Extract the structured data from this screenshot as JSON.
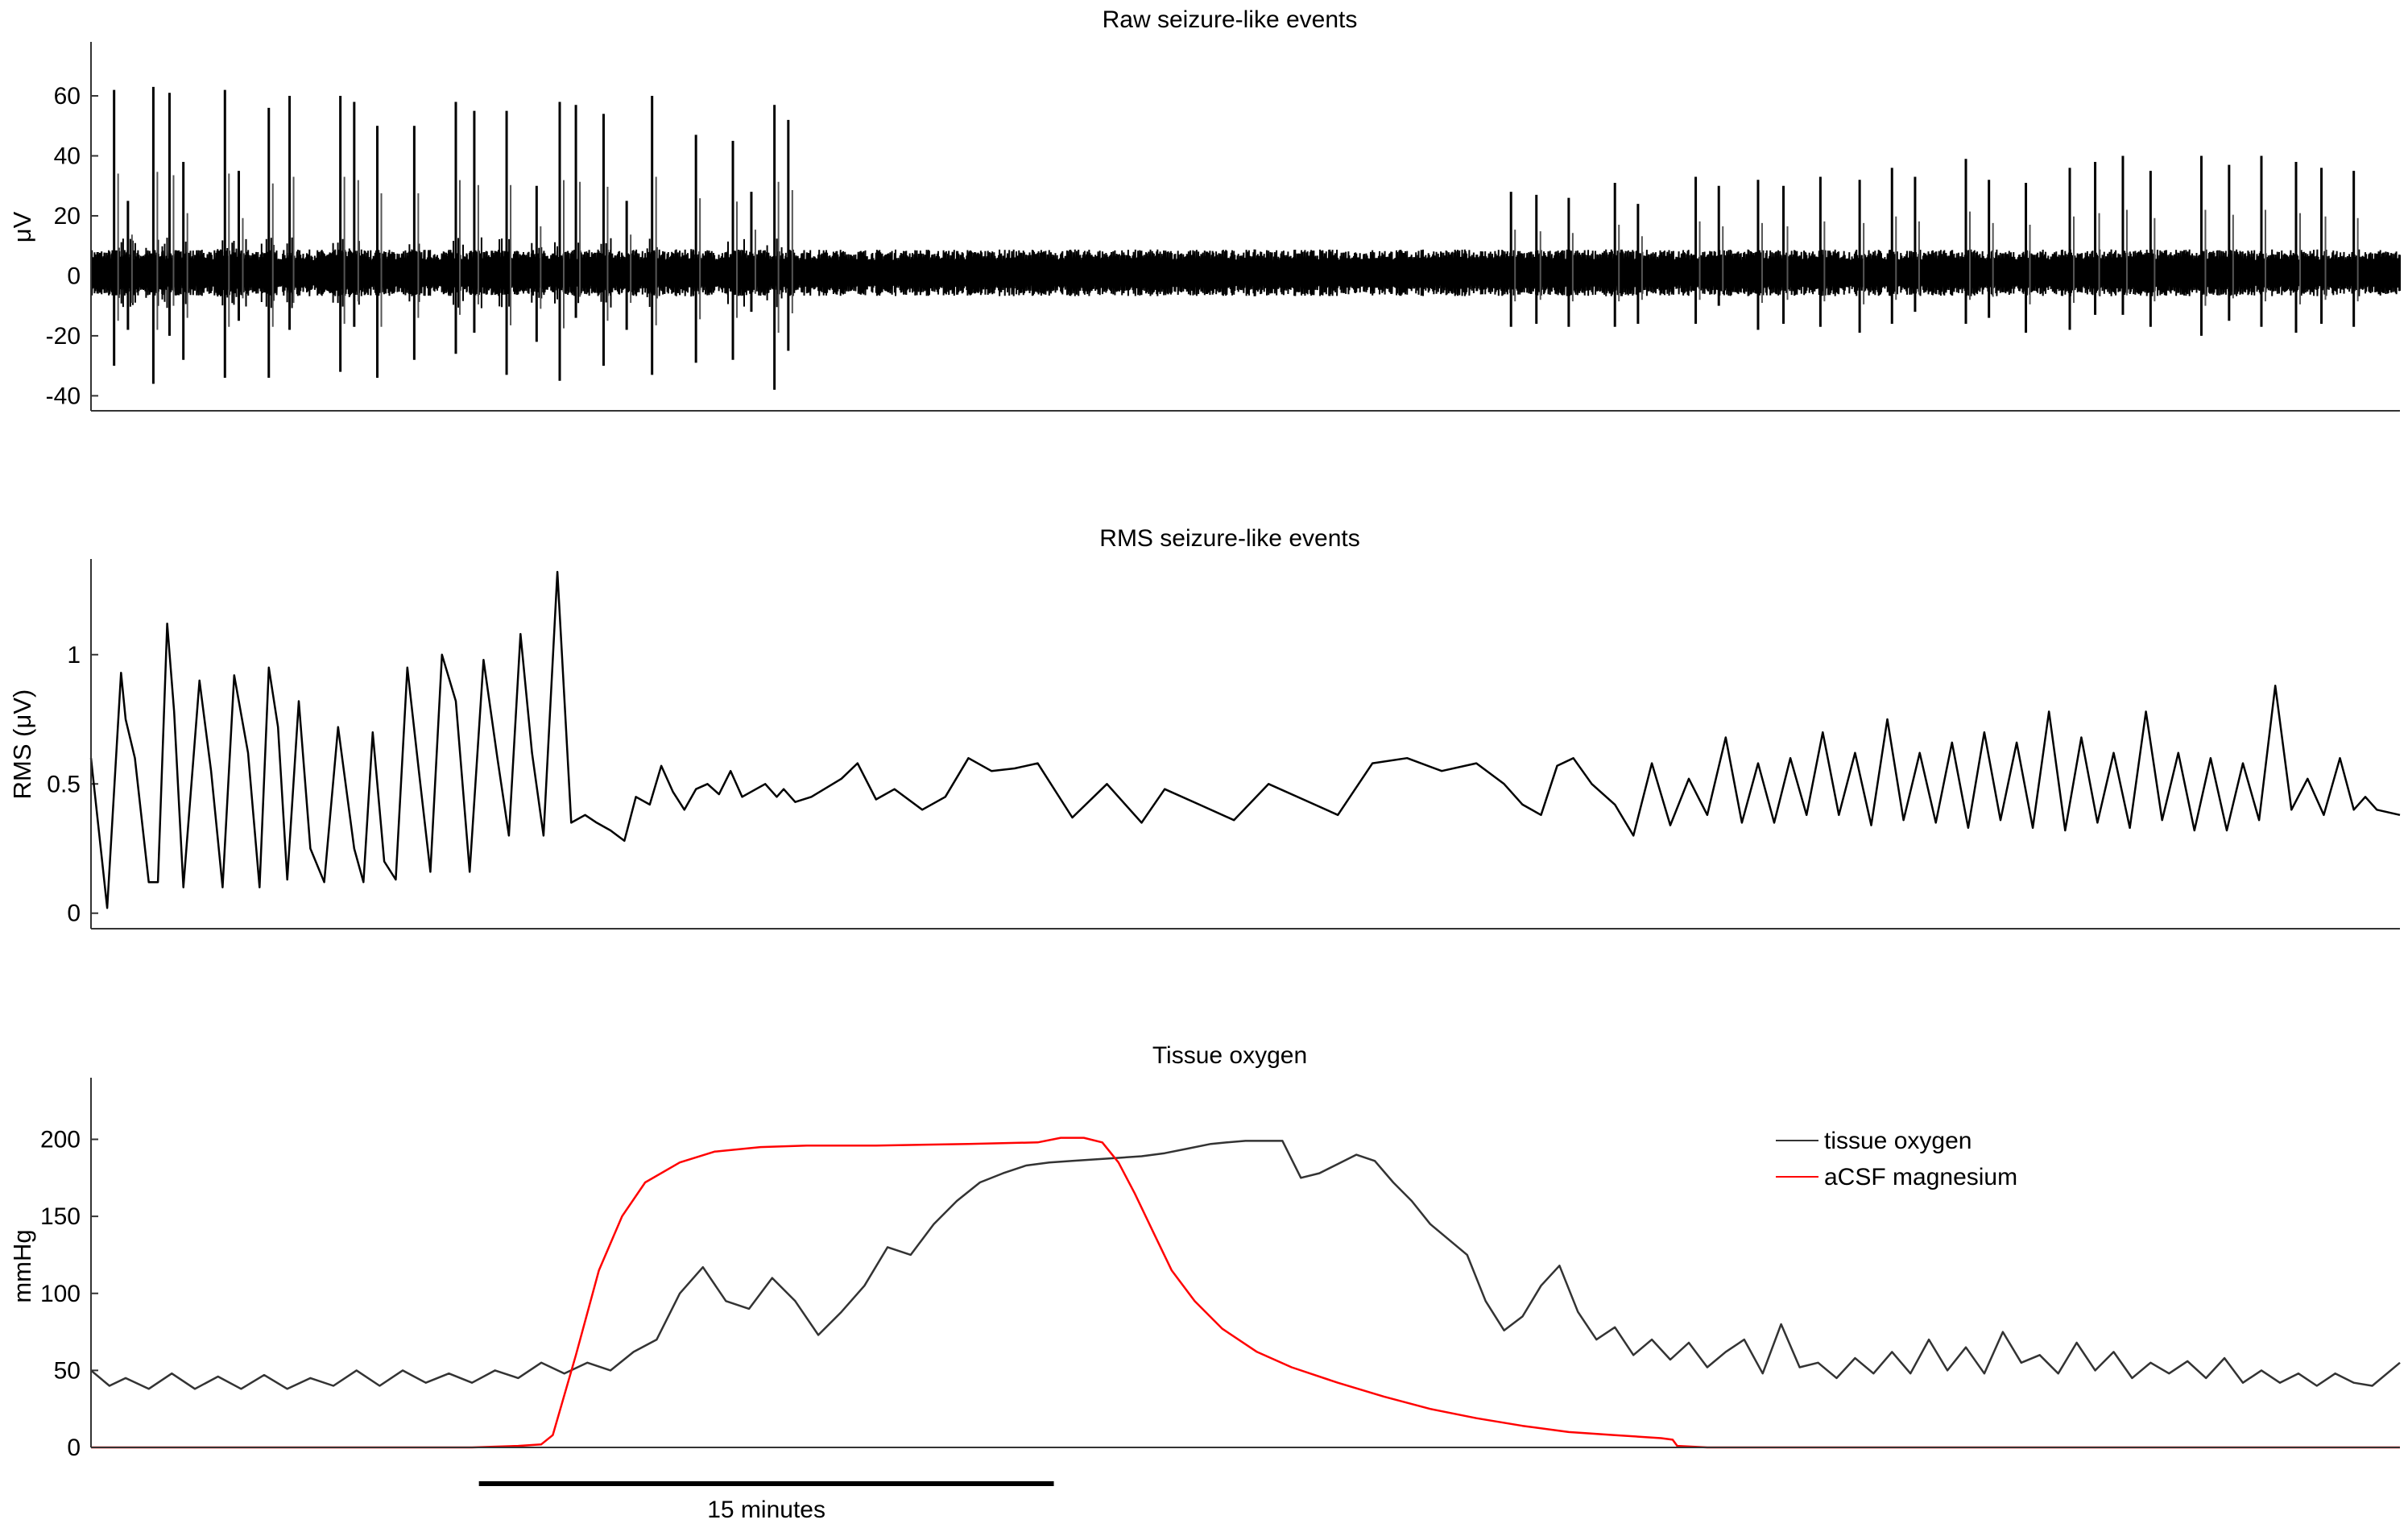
{
  "chart_data": [
    {
      "type": "line",
      "title": "Raw seizure-like events",
      "ylabel": "μV",
      "xlabel": "",
      "ylim": [
        -45,
        78
      ],
      "yticks": [
        60,
        40,
        20,
        0,
        -20,
        -40
      ],
      "ytick_labels": [
        "60",
        "40",
        "20",
        "0",
        "-20",
        "-40"
      ],
      "grid": false,
      "series": [
        {
          "color": "#000000",
          "baseline_band": [
            -5,
            7
          ],
          "early_burst_spikes": [
            {
              "x": 0.01,
              "up": 62,
              "down": -30
            },
            {
              "x": 0.016,
              "up": 25,
              "down": -18
            },
            {
              "x": 0.027,
              "up": 63,
              "down": -36
            },
            {
              "x": 0.034,
              "up": 61,
              "down": -20
            },
            {
              "x": 0.04,
              "up": 38,
              "down": -28
            },
            {
              "x": 0.058,
              "up": 62,
              "down": -34
            },
            {
              "x": 0.064,
              "up": 35,
              "down": -15
            },
            {
              "x": 0.077,
              "up": 56,
              "down": -34
            },
            {
              "x": 0.086,
              "up": 60,
              "down": -18
            },
            {
              "x": 0.108,
              "up": 60,
              "down": -32
            },
            {
              "x": 0.114,
              "up": 58,
              "down": -17
            },
            {
              "x": 0.124,
              "up": 50,
              "down": -34
            },
            {
              "x": 0.14,
              "up": 50,
              "down": -28
            },
            {
              "x": 0.158,
              "up": 58,
              "down": -26
            },
            {
              "x": 0.166,
              "up": 55,
              "down": -19
            },
            {
              "x": 0.18,
              "up": 55,
              "down": -33
            },
            {
              "x": 0.193,
              "up": 30,
              "down": -22
            },
            {
              "x": 0.203,
              "up": 58,
              "down": -35
            },
            {
              "x": 0.21,
              "up": 57,
              "down": -14
            },
            {
              "x": 0.222,
              "up": 54,
              "down": -30
            },
            {
              "x": 0.232,
              "up": 25,
              "down": -18
            },
            {
              "x": 0.243,
              "up": 60,
              "down": -33
            },
            {
              "x": 0.262,
              "up": 47,
              "down": -29
            },
            {
              "x": 0.278,
              "up": 45,
              "down": -28
            },
            {
              "x": 0.286,
              "up": 28,
              "down": -12
            },
            {
              "x": 0.296,
              "up": 57,
              "down": -38
            },
            {
              "x": 0.302,
              "up": 52,
              "down": -25
            }
          ],
          "late_spikes": [
            {
              "x": 0.615,
              "up": 28,
              "down": -17
            },
            {
              "x": 0.626,
              "up": 27,
              "down": -16
            },
            {
              "x": 0.64,
              "up": 26,
              "down": -17
            },
            {
              "x": 0.66,
              "up": 31,
              "down": -17
            },
            {
              "x": 0.67,
              "up": 24,
              "down": -16
            },
            {
              "x": 0.695,
              "up": 33,
              "down": -16
            },
            {
              "x": 0.705,
              "up": 30,
              "down": -10
            },
            {
              "x": 0.722,
              "up": 32,
              "down": -18
            },
            {
              "x": 0.733,
              "up": 30,
              "down": -16
            },
            {
              "x": 0.749,
              "up": 33,
              "down": -17
            },
            {
              "x": 0.766,
              "up": 32,
              "down": -19
            },
            {
              "x": 0.78,
              "up": 36,
              "down": -16
            },
            {
              "x": 0.79,
              "up": 33,
              "down": -12
            },
            {
              "x": 0.812,
              "up": 39,
              "down": -16
            },
            {
              "x": 0.822,
              "up": 32,
              "down": -14
            },
            {
              "x": 0.838,
              "up": 31,
              "down": -19
            },
            {
              "x": 0.857,
              "up": 36,
              "down": -18
            },
            {
              "x": 0.868,
              "up": 38,
              "down": -13
            },
            {
              "x": 0.88,
              "up": 40,
              "down": -13
            },
            {
              "x": 0.892,
              "up": 35,
              "down": -17
            },
            {
              "x": 0.914,
              "up": 40,
              "down": -20
            },
            {
              "x": 0.926,
              "up": 37,
              "down": -15
            },
            {
              "x": 0.94,
              "up": 40,
              "down": -17
            },
            {
              "x": 0.955,
              "up": 38,
              "down": -19
            },
            {
              "x": 0.966,
              "up": 36,
              "down": -16
            },
            {
              "x": 0.98,
              "up": 35,
              "down": -17
            }
          ]
        }
      ]
    },
    {
      "type": "line",
      "title": "RMS seizure-like events",
      "ylabel": "RMS (μV)",
      "xlabel": "",
      "ylim": [
        -0.06,
        1.37
      ],
      "yticks": [
        1,
        0.5,
        0
      ],
      "ytick_labels": [
        "1",
        "0.5",
        "0"
      ],
      "grid": false,
      "series": [
        {
          "color": "#000000",
          "x": [
            0,
            0.007,
            0.013,
            0.015,
            0.019,
            0.025,
            0.029,
            0.033,
            0.036,
            0.04,
            0.047,
            0.052,
            0.057,
            0.062,
            0.068,
            0.073,
            0.077,
            0.081,
            0.085,
            0.09,
            0.095,
            0.101,
            0.107,
            0.114,
            0.118,
            0.122,
            0.127,
            0.132,
            0.137,
            0.142,
            0.147,
            0.152,
            0.158,
            0.164,
            0.17,
            0.176,
            0.181,
            0.186,
            0.191,
            0.196,
            0.202,
            0.208,
            0.214,
            0.219,
            0.225,
            0.231,
            0.236,
            0.242,
            0.247,
            0.252,
            0.257,
            0.262,
            0.267,
            0.272,
            0.277,
            0.282,
            0.288,
            0.292,
            0.297,
            0.3,
            0.305,
            0.312,
            0.325,
            0.332,
            0.34,
            0.348,
            0.36,
            0.37,
            0.38,
            0.39,
            0.4,
            0.41,
            0.425,
            0.44,
            0.455,
            0.465,
            0.48,
            0.495,
            0.51,
            0.525,
            0.54,
            0.555,
            0.57,
            0.585,
            0.6,
            0.612,
            0.62,
            0.628,
            0.635,
            0.642,
            0.65,
            0.66,
            0.668,
            0.676,
            0.684,
            0.692,
            0.7,
            0.708,
            0.715,
            0.722,
            0.729,
            0.736,
            0.743,
            0.75,
            0.757,
            0.764,
            0.771,
            0.778,
            0.785,
            0.792,
            0.799,
            0.806,
            0.813,
            0.82,
            0.827,
            0.834,
            0.841,
            0.848,
            0.855,
            0.862,
            0.869,
            0.876,
            0.883,
            0.89,
            0.897,
            0.904,
            0.911,
            0.918,
            0.925,
            0.932,
            0.939,
            0.946,
            0.953,
            0.96,
            0.967,
            0.974,
            0.98,
            0.985,
            0.99,
            1.0
          ],
          "y": [
            0.6,
            0.02,
            0.93,
            0.75,
            0.6,
            0.12,
            0.12,
            1.12,
            0.78,
            0.1,
            0.9,
            0.55,
            0.1,
            0.92,
            0.62,
            0.1,
            0.95,
            0.72,
            0.13,
            0.82,
            0.25,
            0.12,
            0.72,
            0.25,
            0.12,
            0.7,
            0.2,
            0.13,
            0.95,
            0.55,
            0.16,
            1.0,
            0.82,
            0.16,
            0.98,
            0.6,
            0.3,
            1.08,
            0.62,
            0.3,
            1.32,
            0.35,
            0.38,
            0.35,
            0.32,
            0.28,
            0.45,
            0.42,
            0.57,
            0.47,
            0.4,
            0.48,
            0.5,
            0.46,
            0.55,
            0.45,
            0.48,
            0.5,
            0.45,
            0.48,
            0.43,
            0.45,
            0.52,
            0.58,
            0.44,
            0.48,
            0.4,
            0.45,
            0.6,
            0.55,
            0.56,
            0.58,
            0.37,
            0.5,
            0.35,
            0.48,
            0.42,
            0.36,
            0.5,
            0.44,
            0.38,
            0.58,
            0.6,
            0.55,
            0.58,
            0.5,
            0.42,
            0.38,
            0.57,
            0.6,
            0.5,
            0.42,
            0.3,
            0.58,
            0.34,
            0.52,
            0.38,
            0.68,
            0.35,
            0.58,
            0.35,
            0.6,
            0.38,
            0.7,
            0.38,
            0.62,
            0.34,
            0.75,
            0.36,
            0.62,
            0.35,
            0.66,
            0.33,
            0.7,
            0.36,
            0.66,
            0.33,
            0.78,
            0.32,
            0.68,
            0.35,
            0.62,
            0.33,
            0.78,
            0.36,
            0.62,
            0.32,
            0.6,
            0.32,
            0.58,
            0.36,
            0.88,
            0.4,
            0.52,
            0.38,
            0.6,
            0.4,
            0.45,
            0.4,
            0.38
          ]
        }
      ]
    },
    {
      "type": "line",
      "title": "Tissue oxygen",
      "ylabel": "mmHg",
      "xlabel": "",
      "ylim": [
        0,
        240
      ],
      "yticks": [
        200,
        150,
        100,
        50,
        0
      ],
      "ytick_labels": [
        "200",
        "150",
        "100",
        "50",
        "0"
      ],
      "grid": false,
      "legend_position": "top-right",
      "scale_bar": {
        "label": "15 minutes",
        "x_start": 0.168,
        "x_end": 0.417
      },
      "series": [
        {
          "name": "tissue oxygen",
          "color": "#333333",
          "x": [
            0,
            0.008,
            0.015,
            0.025,
            0.035,
            0.045,
            0.055,
            0.065,
            0.075,
            0.085,
            0.095,
            0.105,
            0.115,
            0.125,
            0.135,
            0.145,
            0.155,
            0.165,
            0.175,
            0.185,
            0.195,
            0.205,
            0.215,
            0.225,
            0.235,
            0.245,
            0.255,
            0.265,
            0.275,
            0.285,
            0.295,
            0.305,
            0.315,
            0.325,
            0.335,
            0.345,
            0.355,
            0.365,
            0.375,
            0.385,
            0.395,
            0.405,
            0.415,
            0.425,
            0.435,
            0.445,
            0.455,
            0.465,
            0.475,
            0.485,
            0.492,
            0.5,
            0.508,
            0.516,
            0.524,
            0.532,
            0.54,
            0.548,
            0.556,
            0.564,
            0.572,
            0.58,
            0.588,
            0.596,
            0.604,
            0.612,
            0.62,
            0.628,
            0.636,
            0.644,
            0.652,
            0.66,
            0.668,
            0.676,
            0.684,
            0.692,
            0.7,
            0.708,
            0.716,
            0.724,
            0.732,
            0.74,
            0.748,
            0.756,
            0.764,
            0.772,
            0.78,
            0.788,
            0.796,
            0.804,
            0.812,
            0.82,
            0.828,
            0.836,
            0.844,
            0.852,
            0.86,
            0.868,
            0.876,
            0.884,
            0.892,
            0.9,
            0.908,
            0.916,
            0.924,
            0.932,
            0.94,
            0.948,
            0.956,
            0.964,
            0.972,
            0.98,
            0.988,
            1.0
          ],
          "y": [
            50,
            40,
            45,
            38,
            48,
            38,
            46,
            38,
            47,
            38,
            45,
            40,
            50,
            40,
            50,
            42,
            48,
            42,
            50,
            45,
            55,
            48,
            55,
            50,
            62,
            70,
            100,
            117,
            95,
            90,
            110,
            95,
            73,
            88,
            105,
            130,
            125,
            145,
            160,
            172,
            178,
            183,
            185,
            186,
            187,
            188,
            189,
            191,
            194,
            197,
            198,
            199,
            199,
            199,
            175,
            178,
            184,
            190,
            186,
            172,
            160,
            145,
            135,
            125,
            95,
            76,
            85,
            105,
            118,
            88,
            70,
            78,
            60,
            70,
            57,
            68,
            52,
            62,
            70,
            48,
            80,
            52,
            55,
            45,
            58,
            48,
            62,
            48,
            70,
            50,
            65,
            48,
            75,
            55,
            60,
            48,
            68,
            50,
            62,
            45,
            55,
            48,
            56,
            45,
            58,
            42,
            50,
            42,
            48,
            40,
            48,
            42,
            40,
            55
          ]
        },
        {
          "name": "aCSF magnesium",
          "color": "#ff0000",
          "x": [
            0,
            0.165,
            0.185,
            0.195,
            0.2,
            0.21,
            0.22,
            0.23,
            0.24,
            0.255,
            0.27,
            0.29,
            0.31,
            0.34,
            0.38,
            0.41,
            0.42,
            0.43,
            0.438,
            0.445,
            0.452,
            0.46,
            0.468,
            0.478,
            0.49,
            0.505,
            0.52,
            0.54,
            0.56,
            0.58,
            0.6,
            0.62,
            0.64,
            0.66,
            0.68,
            0.685,
            0.687,
            0.7,
            0.8,
            0.9,
            1.0
          ],
          "y": [
            0,
            0,
            1,
            2,
            8,
            60,
            115,
            150,
            172,
            185,
            192,
            195,
            196,
            196,
            197,
            198,
            201,
            201,
            198,
            185,
            165,
            140,
            115,
            95,
            77,
            62,
            52,
            42,
            33,
            25,
            19,
            14,
            10,
            8,
            6,
            5,
            1,
            0,
            0,
            0,
            0
          ]
        }
      ]
    }
  ]
}
